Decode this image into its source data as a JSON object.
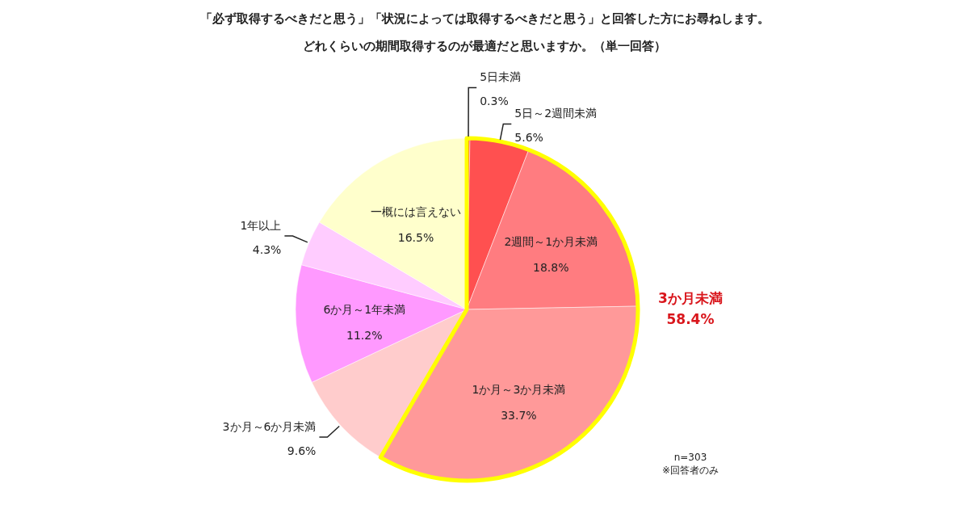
{
  "chart_data": {
    "type": "pie",
    "title": "「必ず取得するべきだと思う」「状況によっては取得するべきだと思う」と回答した方にお尋ねします。",
    "subtitle": "どれくらいの期間取得するのが最適だと思いますか。（単一回答）",
    "categories": [
      "5日未満",
      "5日～2週間未満",
      "2週間～1か月未満",
      "1か月～3か月未満",
      "3か月～6か月未満",
      "6か月～1年未満",
      "1年以上",
      "一概には言えない"
    ],
    "values": [
      0.3,
      5.6,
      18.8,
      33.7,
      9.6,
      11.2,
      4.3,
      16.5
    ],
    "colors": [
      "#ff3333",
      "#ff5050",
      "#ff7c80",
      "#ff9999",
      "#ffcccc",
      "#ff99ff",
      "#ffccff",
      "#ffffcc"
    ],
    "value_labels": [
      "0.3%",
      "5.6%",
      "18.8%",
      "33.7%",
      "9.6%",
      "11.2%",
      "4.3%",
      "16.5%"
    ],
    "annotations": [
      "3か月未満\n58.4%",
      "n=303\n※回答者のみ"
    ]
  }
}
